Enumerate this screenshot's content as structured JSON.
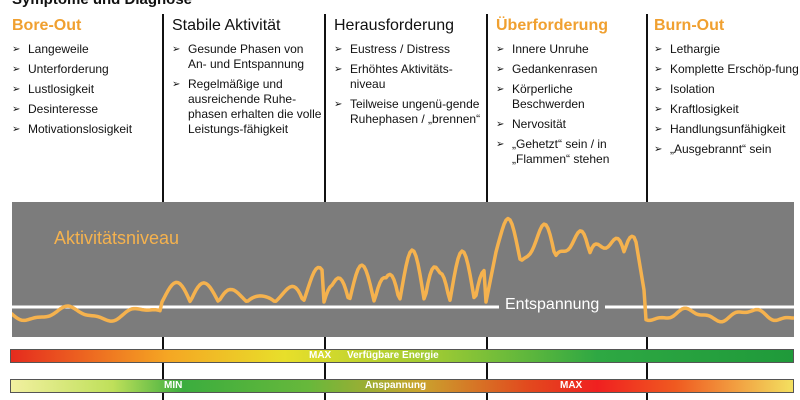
{
  "title": "Symptome und Diagnose",
  "columns": [
    {
      "title": "Bore-Out",
      "accent": true,
      "items": [
        "Langeweile",
        "Unterforderung",
        "Lustlosigkeit",
        "Desinteresse",
        "Motivationslosigkeit"
      ]
    },
    {
      "title": "Stabile Aktivität",
      "accent": false,
      "items": [
        "Gesunde Phasen von An- und Entspannung",
        "Regelmäßige und ausreichende Ruhe-phasen erhalten die volle Leistungs-fähigkeit"
      ]
    },
    {
      "title": "Herausforderung",
      "accent": false,
      "items": [
        "Eustress / Distress",
        "Erhöhtes Aktivitäts-niveau",
        "Teilweise ungenü-gende Ruhephasen / „brennen“"
      ]
    },
    {
      "title": "Überforderung",
      "accent": true,
      "items": [
        "Innere Unruhe",
        "Gedankenrasen",
        "Körperliche Beschwerden",
        "Nervosität",
        "„Gehetzt“ sein / in „Flammen“ stehen"
      ]
    },
    {
      "title": "Burn-Out",
      "accent": true,
      "items": [
        "Lethargie",
        "Komplette Erschöp-fung",
        "Isolation",
        "Kraftlosigkeit",
        "Handlungsunfähigkeit",
        "„Ausgebrannt“ sein"
      ]
    }
  ],
  "chart": {
    "activity_label": "Aktivitätsniveau",
    "relax_label": "Entspannung"
  },
  "bars": {
    "energy": {
      "max_label": "MAX",
      "caption": "Verfügbare Energie"
    },
    "tension": {
      "min_label": "MIN",
      "caption": "Anspannung",
      "max_label": "MAX"
    }
  },
  "colors": {
    "accent": "#f0a030",
    "wave": "#f5b24e",
    "panel": "#7c7c7c",
    "baseline": "#ffffff"
  }
}
